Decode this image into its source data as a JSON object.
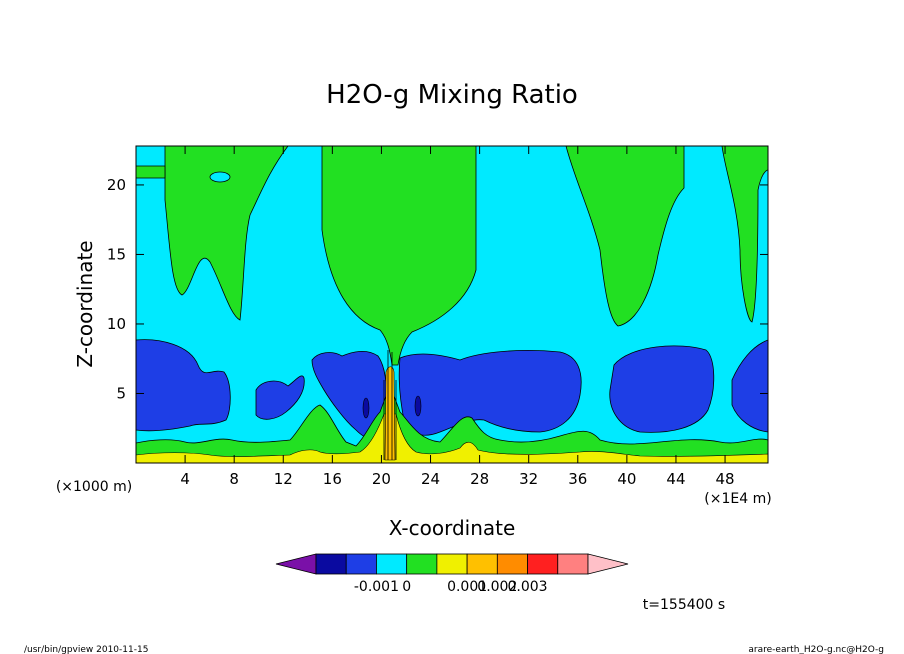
{
  "chart_data": {
    "type": "contour",
    "title": "H2O-g Mixing Ratio",
    "xlabel": "X-coordinate",
    "ylabel": "Z-coordinate",
    "x_unit_left": "(×1000 m)",
    "x_unit_right": "(×1E4 m)",
    "x_ticks": [
      "4",
      "8",
      "12",
      "16",
      "20",
      "24",
      "28",
      "32",
      "36",
      "40",
      "44",
      "48"
    ],
    "x_tick_values": [
      4,
      8,
      12,
      16,
      20,
      24,
      28,
      32,
      36,
      40,
      44,
      48
    ],
    "xlim": [
      0,
      51.5
    ],
    "y_ticks": [
      "5",
      "10",
      "15",
      "20"
    ],
    "y_tick_values": [
      5,
      10,
      15,
      20
    ],
    "ylim": [
      0,
      22.8
    ],
    "colorbar": {
      "colors": [
        "#7a10a8",
        "#0a0aa0",
        "#1e3ee6",
        "#00eaff",
        "#22e022",
        "#f0f000",
        "#ffc000",
        "#ff8c00",
        "#ff2020",
        "#ff8080",
        "#ffc0c8"
      ],
      "labels": [
        "-0.001",
        "0",
        "0.001",
        "0.002",
        "0.003"
      ]
    },
    "time_label": "t=155400 s"
  },
  "footer": {
    "left": "/usr/bin/gpview  2010-11-15",
    "right": "arare-earth_H2O-g.nc@H2O-g"
  }
}
